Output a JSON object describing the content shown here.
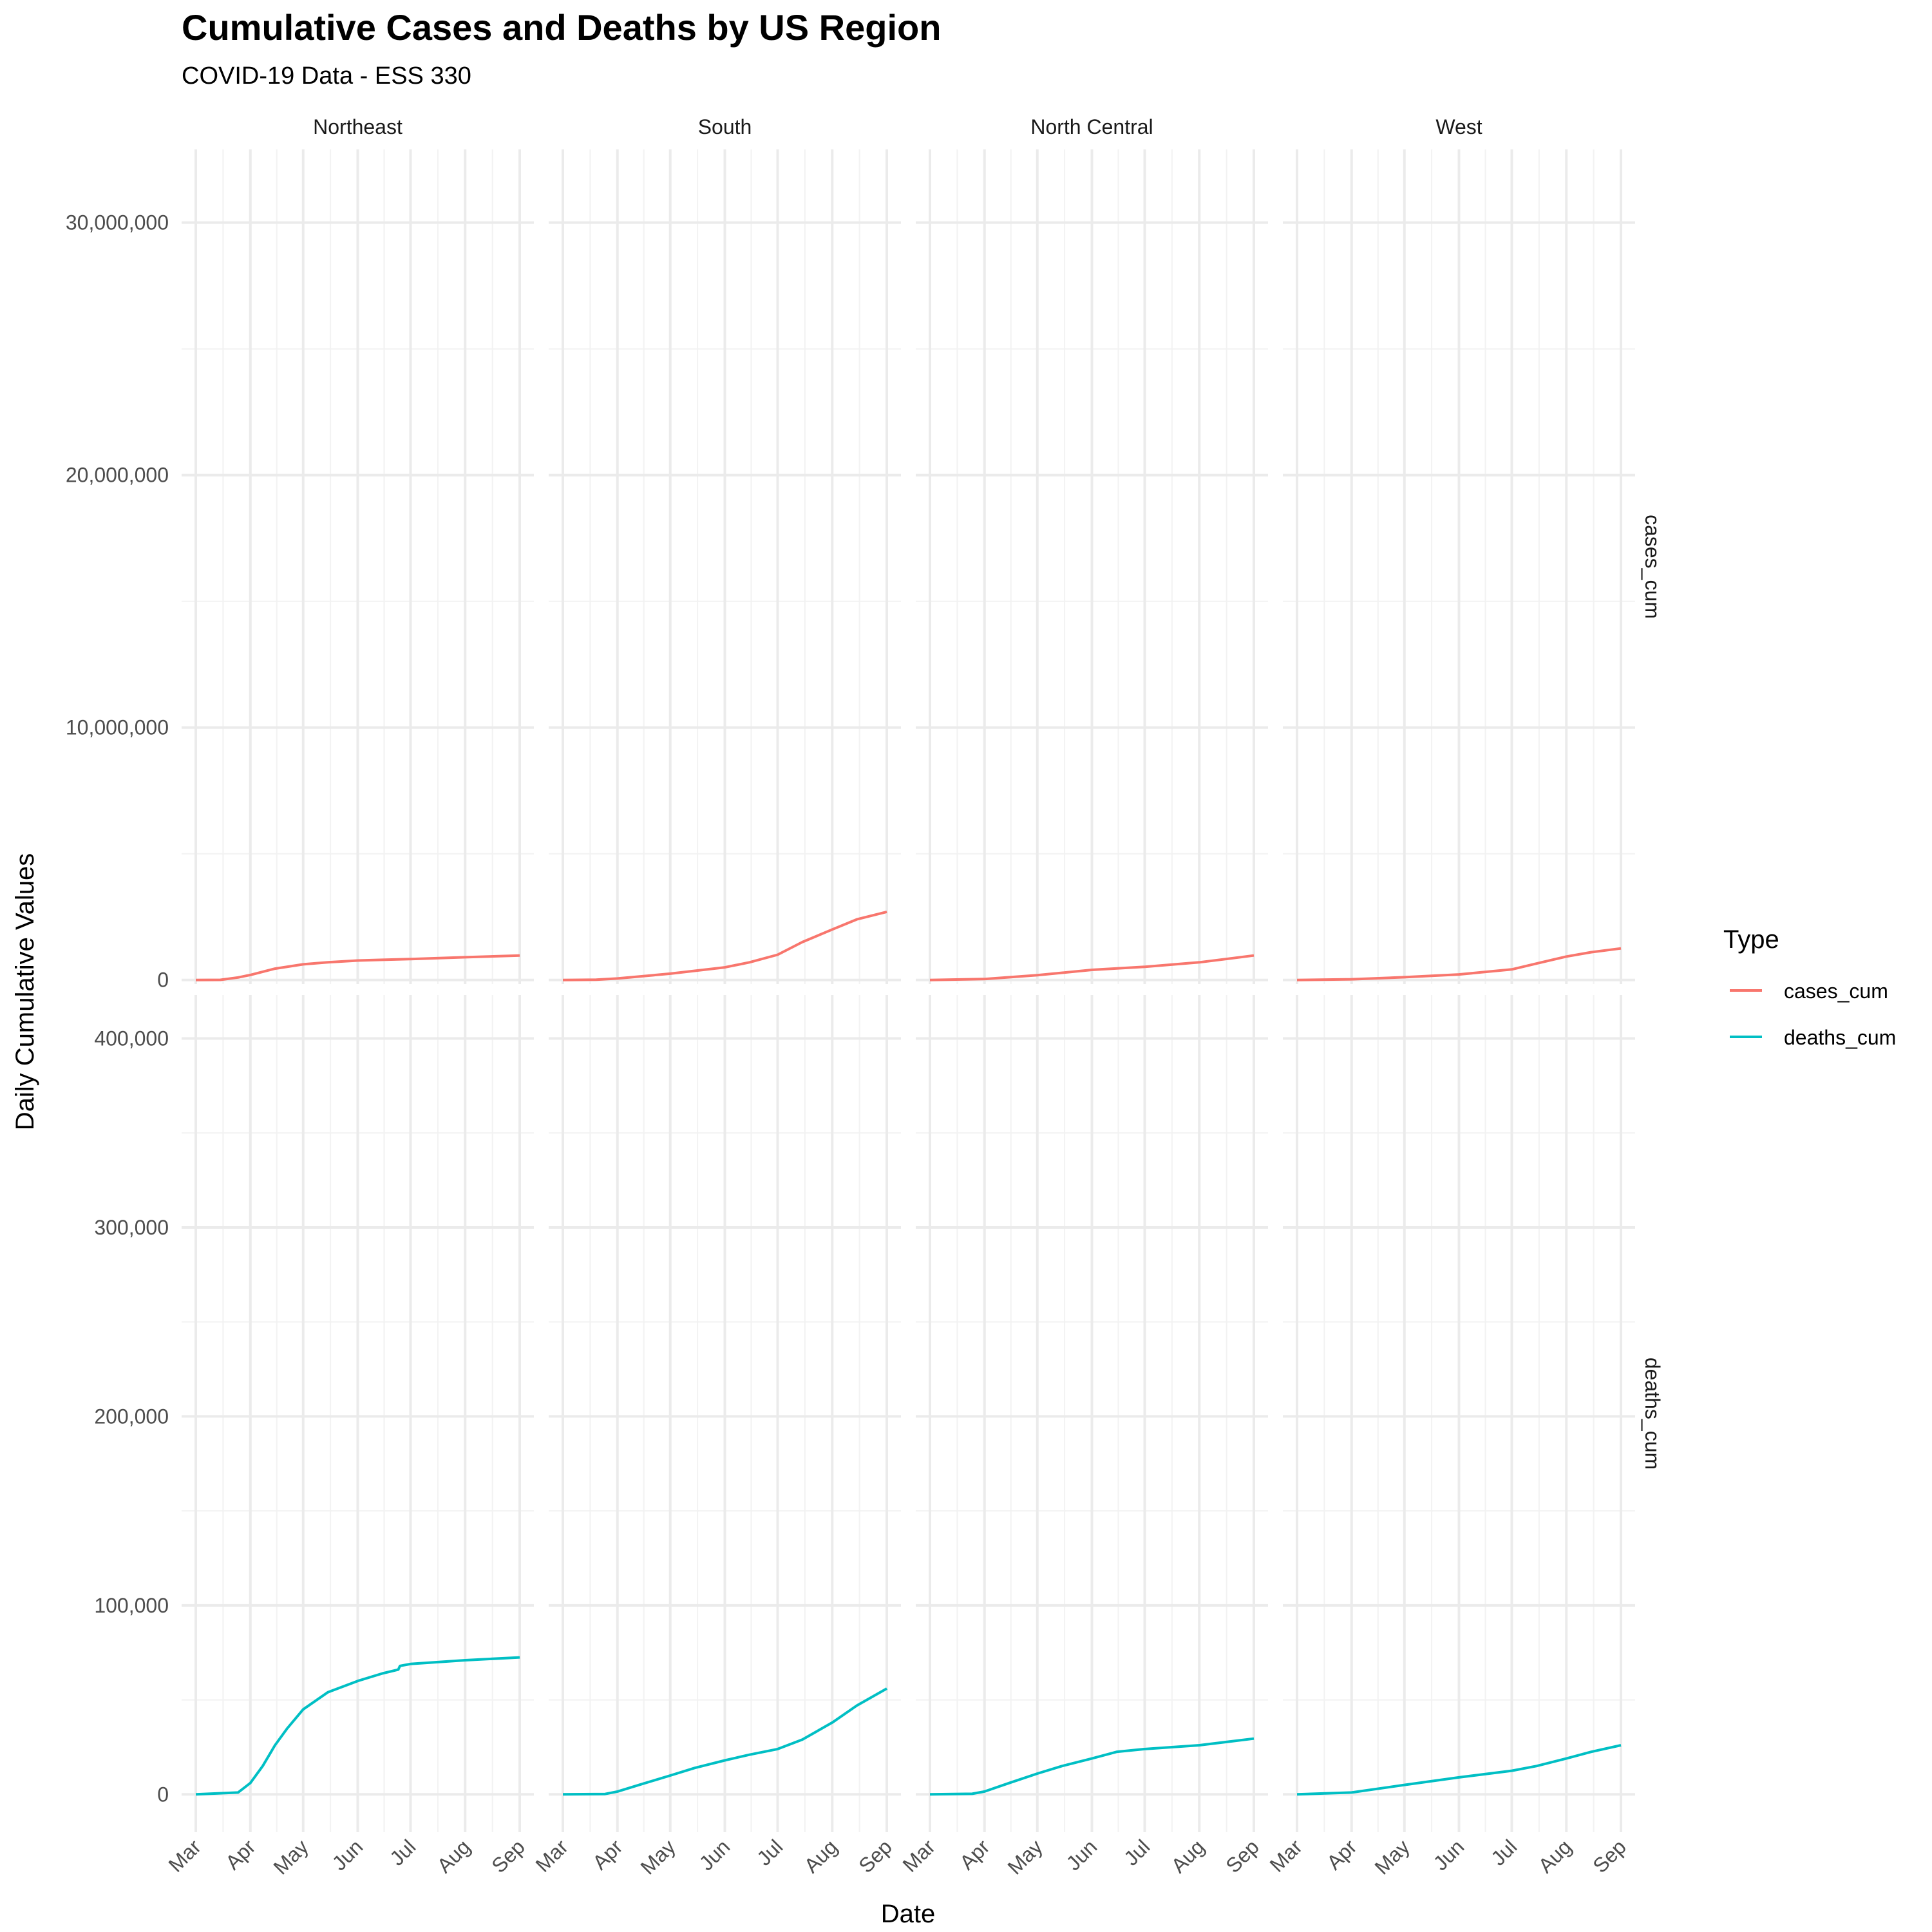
{
  "chart_data": {
    "type": "line",
    "title": "Cumulative Cases and Deaths by US Region",
    "subtitle": "COVID-19 Data - ESS 330",
    "xlabel": "Date",
    "ylabel": "Daily Cumulative Values",
    "x_ticks": [
      "Mar",
      "Apr",
      "May",
      "Jun",
      "Jul",
      "Aug",
      "Sep"
    ],
    "x_tick_dates": [
      "2020-03-01",
      "2020-04-01",
      "2020-05-01",
      "2020-06-01",
      "2020-07-01",
      "2020-08-01",
      "2020-09-01"
    ],
    "xlim": [
      "2020-03-01",
      "2020-09-01"
    ],
    "regions": [
      "Northeast",
      "South",
      "North Central",
      "West"
    ],
    "grid": true,
    "legend": {
      "title": "Type",
      "position": "right",
      "items": [
        {
          "label": "cases_cum",
          "color": "#F8766D"
        },
        {
          "label": "deaths_cum",
          "color": "#00BFC4"
        }
      ]
    },
    "rows": [
      {
        "label": "cases_cum",
        "color": "#F8766D",
        "ylim": [
          -160000,
          32900000
        ],
        "y_ticks": [
          0,
          10000000,
          20000000,
          30000000
        ],
        "y_tick_labels": [
          "0",
          "10,000,000",
          "20,000,000",
          "30,000,000"
        ],
        "series": [
          {
            "name": "Northeast",
            "x": [
              "2020-03-01",
              "2020-03-15",
              "2020-03-25",
              "2020-04-01",
              "2020-04-15",
              "2020-05-01",
              "2020-05-15",
              "2020-06-01",
              "2020-06-15",
              "2020-07-01",
              "2020-08-01",
              "2020-09-01"
            ],
            "y": [
              0,
              5000,
              100000,
              200000,
              450000,
              620000,
              700000,
              770000,
              800000,
              830000,
              900000,
              970000
            ]
          },
          {
            "name": "South",
            "x": [
              "2020-03-01",
              "2020-03-20",
              "2020-04-01",
              "2020-05-01",
              "2020-06-01",
              "2020-06-15",
              "2020-07-01",
              "2020-07-15",
              "2020-08-01",
              "2020-08-15",
              "2020-09-01"
            ],
            "y": [
              0,
              10000,
              60000,
              250000,
              500000,
              700000,
              1000000,
              1500000,
              2000000,
              2400000,
              2700000
            ]
          },
          {
            "name": "North Central",
            "x": [
              "2020-03-01",
              "2020-04-01",
              "2020-05-01",
              "2020-06-01",
              "2020-07-01",
              "2020-08-01",
              "2020-09-01"
            ],
            "y": [
              0,
              40000,
              190000,
              400000,
              520000,
              700000,
              970000
            ]
          },
          {
            "name": "West",
            "x": [
              "2020-03-01",
              "2020-04-01",
              "2020-05-01",
              "2020-06-01",
              "2020-07-01",
              "2020-07-15",
              "2020-08-01",
              "2020-08-15",
              "2020-09-01"
            ],
            "y": [
              0,
              30000,
              110000,
              220000,
              420000,
              650000,
              930000,
              1100000,
              1250000
            ]
          }
        ]
      },
      {
        "label": "deaths_cum",
        "color": "#00BFC4",
        "ylim": [
          -20000,
          423000
        ],
        "y_ticks": [
          0,
          100000,
          200000,
          300000,
          400000
        ],
        "y_tick_labels": [
          "0",
          "100,000",
          "200,000",
          "300,000",
          "400,000"
        ],
        "series": [
          {
            "name": "Northeast",
            "x": [
              "2020-03-01",
              "2020-03-25",
              "2020-04-01",
              "2020-04-08",
              "2020-04-15",
              "2020-04-22",
              "2020-05-01",
              "2020-05-15",
              "2020-06-01",
              "2020-06-15",
              "2020-06-24",
              "2020-06-25",
              "2020-07-01",
              "2020-08-01",
              "2020-09-01"
            ],
            "y": [
              0,
              1000,
              6000,
              15000,
              26000,
              35000,
              45000,
              54000,
              60000,
              64000,
              66000,
              68000,
              69000,
              71000,
              72500
            ]
          },
          {
            "name": "South",
            "x": [
              "2020-03-01",
              "2020-03-25",
              "2020-04-01",
              "2020-04-15",
              "2020-05-01",
              "2020-05-15",
              "2020-06-01",
              "2020-06-15",
              "2020-07-01",
              "2020-07-15",
              "2020-08-01",
              "2020-08-15",
              "2020-09-01"
            ],
            "y": [
              0,
              200,
              1500,
              5500,
              10000,
              14000,
              18000,
              21000,
              24000,
              29000,
              38000,
              47000,
              56000
            ]
          },
          {
            "name": "North Central",
            "x": [
              "2020-03-01",
              "2020-03-25",
              "2020-04-01",
              "2020-04-15",
              "2020-05-01",
              "2020-05-15",
              "2020-06-01",
              "2020-06-15",
              "2020-07-01",
              "2020-08-01",
              "2020-09-01"
            ],
            "y": [
              0,
              300,
              1500,
              6000,
              11000,
              15000,
              19000,
              22500,
              24000,
              26000,
              29500
            ]
          },
          {
            "name": "West",
            "x": [
              "2020-03-01",
              "2020-04-01",
              "2020-05-01",
              "2020-06-01",
              "2020-07-01",
              "2020-07-15",
              "2020-08-01",
              "2020-08-15",
              "2020-09-01"
            ],
            "y": [
              0,
              1000,
              5000,
              9000,
              12500,
              15000,
              19000,
              22500,
              26000
            ]
          }
        ]
      }
    ]
  }
}
